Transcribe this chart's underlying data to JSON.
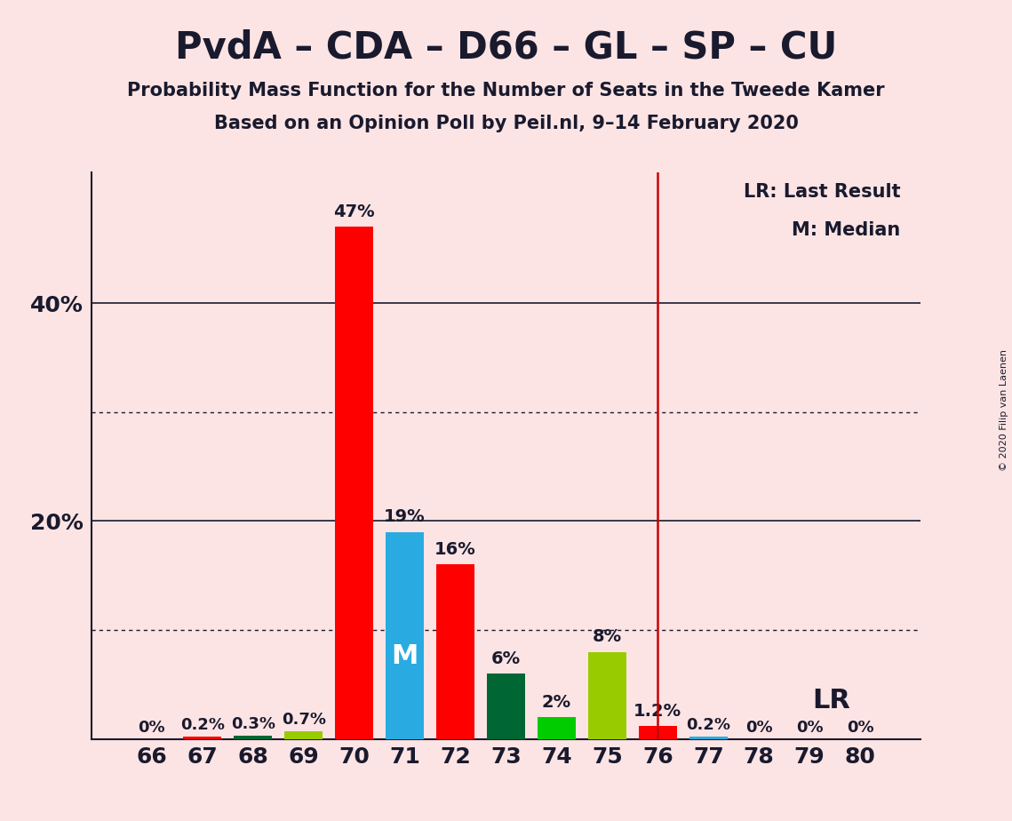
{
  "title": "PvdA – CDA – D66 – GL – SP – CU",
  "subtitle1": "Probability Mass Function for the Number of Seats in the Tweede Kamer",
  "subtitle2": "Based on an Opinion Poll by Peil.nl, 9–14 February 2020",
  "copyright": "© 2020 Filip van Laenen",
  "seats": [
    66,
    67,
    68,
    69,
    70,
    71,
    72,
    73,
    74,
    75,
    76,
    77,
    78,
    79,
    80
  ],
  "probabilities": [
    0.0,
    0.2,
    0.3,
    0.7,
    47.0,
    19.0,
    16.0,
    6.0,
    2.0,
    8.0,
    1.2,
    0.2,
    0.0,
    0.0,
    0.0
  ],
  "bar_colors": [
    "#ff0000",
    "#ff0000",
    "#006633",
    "#99cc00",
    "#ff0000",
    "#29abe2",
    "#ff0000",
    "#006633",
    "#00cc00",
    "#99cc00",
    "#ff0000",
    "#29abe2",
    "#ff0000",
    "#ff0000",
    "#ff0000"
  ],
  "labels": [
    "0%",
    "0.2%",
    "0.3%",
    "0.7%",
    "47%",
    "19%",
    "16%",
    "6%",
    "2%",
    "8%",
    "1.2%",
    "0.2%",
    "0%",
    "0%",
    "0%"
  ],
  "median_seat": 71,
  "lr_seat": 76,
  "background_color": "#fce4e4",
  "ylim": [
    0,
    52
  ],
  "ytick_positions": [
    20,
    40
  ],
  "ytick_labels": [
    "20%",
    "40%"
  ],
  "dotted_lines": [
    10,
    30
  ],
  "solid_lines": [
    20,
    40
  ],
  "legend_lr": "LR: Last Result",
  "legend_m": "M: Median",
  "lr_label": "LR",
  "m_label": "M"
}
